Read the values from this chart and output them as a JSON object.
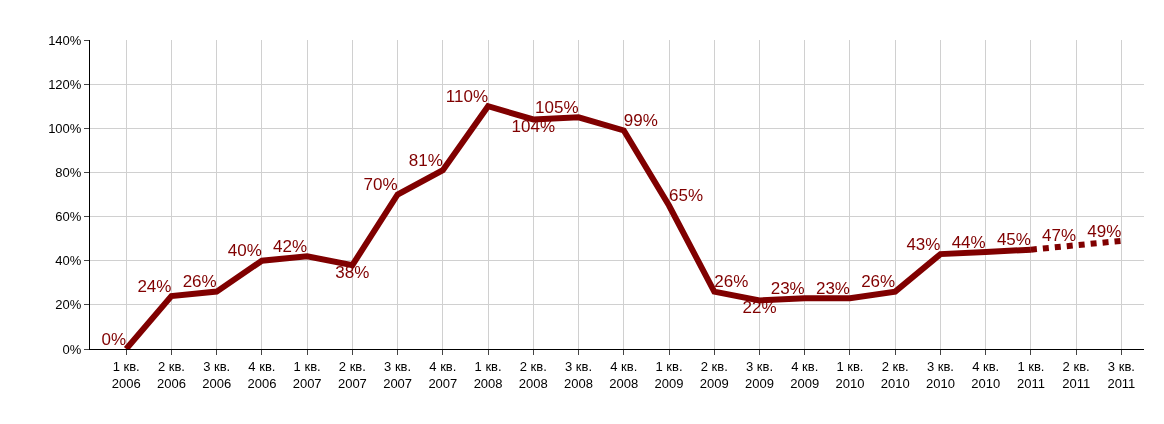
{
  "chart_data": {
    "type": "line",
    "categories": [
      "1 кв. 2006",
      "2 кв. 2006",
      "3 кв. 2006",
      "4 кв. 2006",
      "1 кв. 2007",
      "2 кв. 2007",
      "3 кв. 2007",
      "4 кв. 2007",
      "1 кв. 2008",
      "2 кв. 2008",
      "3 кв. 2008",
      "4 кв. 2008",
      "1 кв. 2009",
      "2 кв. 2009",
      "3 кв. 2009",
      "4 кв. 2009",
      "1 кв. 2010",
      "2 кв. 2010",
      "3 кв. 2010",
      "4 кв. 2010",
      "1 кв. 2011",
      "2 кв. 2011",
      "3 кв. 2011"
    ],
    "series": [
      {
        "color": "#800000",
        "line_style": "solid",
        "values": [
          0,
          24,
          26,
          40,
          42,
          38,
          70,
          81,
          110,
          104,
          105,
          99,
          65,
          26,
          22,
          23,
          23,
          26,
          43,
          44,
          45,
          null,
          null
        ],
        "value_labels": [
          "0%",
          "24%",
          "26%",
          "40%",
          "42%",
          "38%",
          "70%",
          "81%",
          "110%",
          "104%",
          "105%",
          "99%",
          "65%",
          "26%",
          "22%",
          "23%",
          "23%",
          "26%",
          "43%",
          "44%",
          "45%",
          null,
          null
        ]
      },
      {
        "color": "#800000",
        "line_style": "dotted",
        "values": [
          null,
          null,
          null,
          null,
          null,
          null,
          null,
          null,
          null,
          null,
          null,
          null,
          null,
          null,
          null,
          null,
          null,
          null,
          null,
          null,
          45,
          47,
          49
        ],
        "value_labels": [
          null,
          null,
          null,
          null,
          null,
          null,
          null,
          null,
          null,
          null,
          null,
          null,
          null,
          null,
          null,
          null,
          null,
          null,
          null,
          null,
          null,
          "47%",
          "49%"
        ]
      }
    ],
    "ylim": [
      0,
      140
    ],
    "yticks": [
      {
        "value": 0,
        "label": "0%"
      },
      {
        "value": 20,
        "label": "20%"
      },
      {
        "value": 40,
        "label": "40%"
      },
      {
        "value": 60,
        "label": "60%"
      },
      {
        "value": 80,
        "label": "80%"
      },
      {
        "value": 100,
        "label": "100%"
      },
      {
        "value": 120,
        "label": "120%"
      },
      {
        "value": 140,
        "label": "140%"
      }
    ],
    "grid": true,
    "marker": "none"
  }
}
